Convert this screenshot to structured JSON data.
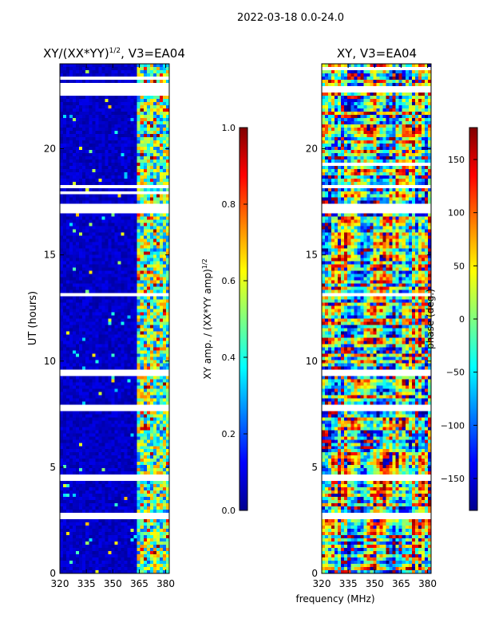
{
  "figure_title": "2022-03-18 0.0-24.0",
  "xlabel_shared": "frequency (MHz)",
  "chart_data": [
    {
      "type": "heatmap",
      "title_main": "XY/(XX*YY)",
      "title_sup": "1/2",
      "title_tail": ", V3=EA04",
      "ylabel": "UT (hours)",
      "xlim": [
        320,
        382
      ],
      "ylim": [
        0,
        24
      ],
      "xticks": [
        320,
        335,
        350,
        365,
        380
      ],
      "yticks": [
        0,
        5,
        10,
        15,
        20
      ],
      "colorbar": {
        "label_main": "XY amp. / (XX*YY amp)",
        "label_sup": "1/2",
        "range": [
          0.0,
          1.0
        ],
        "ticks": [
          "0.0",
          "0.2",
          "0.4",
          "0.6",
          "0.8",
          "1.0"
        ],
        "tick_values": [
          0.0,
          0.2,
          0.4,
          0.6,
          0.8,
          1.0
        ]
      },
      "colormap": "jet",
      "mostly_low_below_mhz": 363,
      "band_start_mhz": 363,
      "band_end_mhz": 382,
      "gap_hours": [
        [
          2.6,
          2.8
        ],
        [
          4.4,
          4.7
        ],
        [
          7.6,
          7.9
        ],
        [
          9.3,
          9.6
        ],
        [
          13.0,
          13.2
        ],
        [
          16.9,
          17.4
        ],
        [
          22.6,
          22.9
        ]
      ]
    },
    {
      "type": "heatmap",
      "title": "XY, V3=EA04",
      "xlim": [
        320,
        382
      ],
      "ylim": [
        0,
        24
      ],
      "xticks": [
        320,
        335,
        350,
        365,
        380
      ],
      "yticks": [
        0,
        5,
        10,
        15,
        20
      ],
      "colorbar": {
        "label": "phase (deg.)",
        "range": [
          -180,
          180
        ],
        "ticks": [
          "−150",
          "−100",
          "−50",
          "0",
          "50",
          "100",
          "150"
        ],
        "tick_values": [
          -150,
          -100,
          -50,
          0,
          50,
          100,
          150
        ]
      },
      "colormap": "jet",
      "gap_hours": [
        [
          2.6,
          2.8
        ],
        [
          4.4,
          4.7
        ],
        [
          7.6,
          7.9
        ],
        [
          9.3,
          9.6
        ],
        [
          13.0,
          13.2
        ],
        [
          16.9,
          17.4
        ],
        [
          22.6,
          22.9
        ]
      ]
    }
  ]
}
